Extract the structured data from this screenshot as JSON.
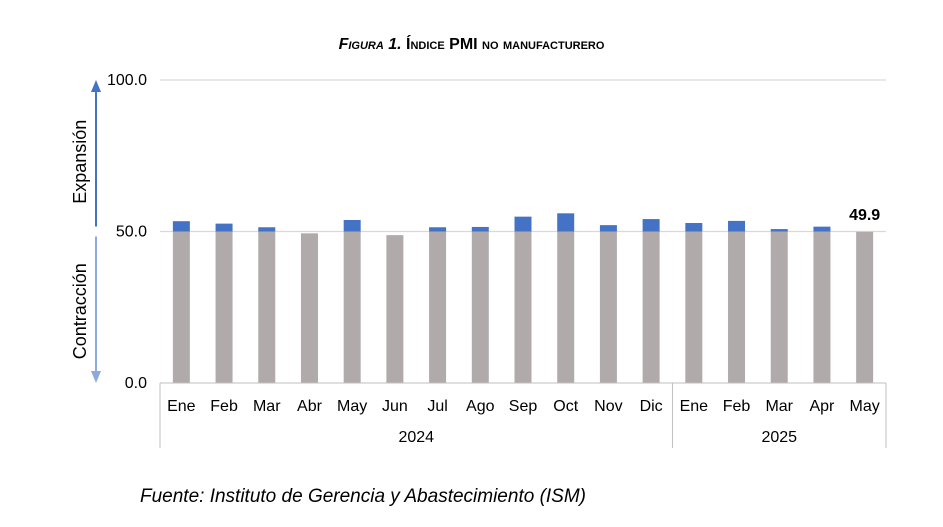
{
  "title": {
    "fig_label": "Figura 1.",
    "text": "Índice PMI no manufacturero"
  },
  "source": "Fuente: Instituto de Gerencia y Abastecimiento (ISM)",
  "colors": {
    "base_bar": "#b0abaa",
    "above_bar": "#4472c4",
    "arrow_up": "#4472c4",
    "arrow_down": "#8eaadb",
    "grid": "#d9d9d9",
    "axis": "#bfbfbf"
  },
  "chart_data": {
    "type": "bar",
    "categories": [
      "Ene",
      "Feb",
      "Mar",
      "Abr",
      "May",
      "Jun",
      "Jul",
      "Ago",
      "Sep",
      "Oct",
      "Nov",
      "Dic",
      "Ene",
      "Feb",
      "Mar",
      "Apr",
      "May"
    ],
    "groups": [
      {
        "label": "2024",
        "count": 12
      },
      {
        "label": "2025",
        "count": 5
      }
    ],
    "values": [
      53.4,
      52.6,
      51.4,
      49.4,
      53.8,
      48.8,
      51.4,
      51.5,
      54.9,
      56.0,
      52.1,
      54.1,
      52.8,
      53.5,
      50.8,
      51.6,
      49.9
    ],
    "baseline": 50.0,
    "ylim": [
      0,
      100
    ],
    "yticks": [
      "0.0",
      "50.0",
      "100.0"
    ],
    "ytick_values": [
      0,
      50,
      100
    ],
    "annotation": {
      "index": 16,
      "text": "49.9"
    },
    "side_labels": {
      "upper": "Expansión",
      "lower": "Contracción"
    },
    "grid": true
  }
}
